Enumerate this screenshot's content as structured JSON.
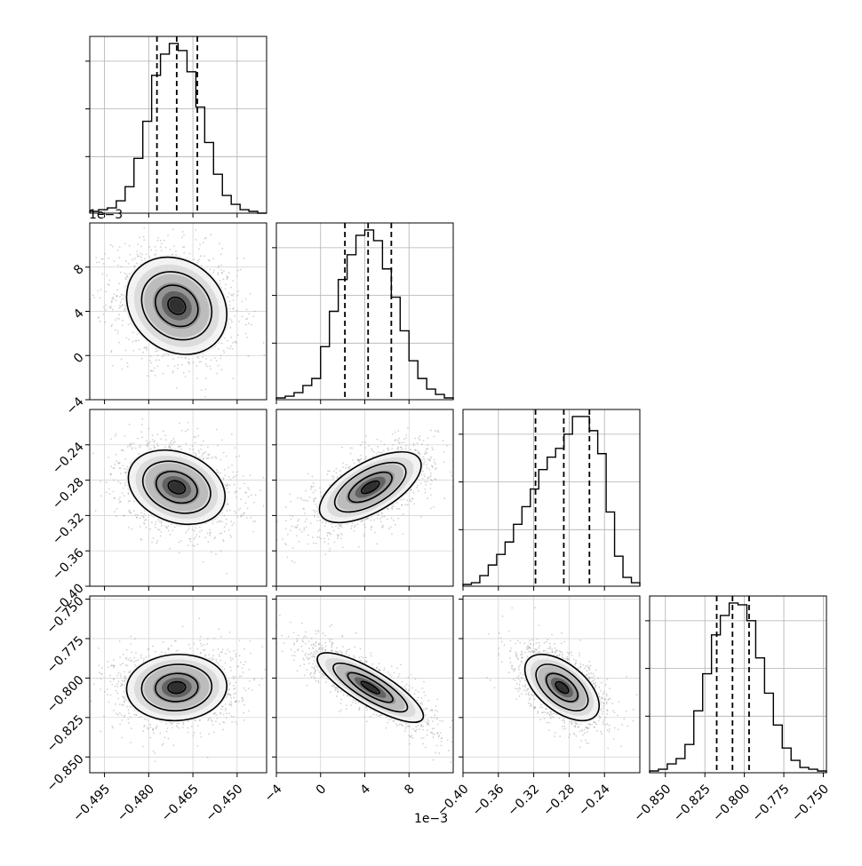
{
  "chart_data": {
    "type": "corner",
    "parameters": [
      {
        "range": [
          -0.5,
          -0.44
        ],
        "ticks": [
          -0.495,
          -0.48,
          -0.465,
          -0.45
        ],
        "tick_labels": [
          "−0.495",
          "−0.480",
          "−0.465",
          "−0.450"
        ],
        "quantiles": [
          -0.4772,
          -0.4705,
          -0.4635
        ]
      },
      {
        "range": [
          -0.004,
          0.012
        ],
        "ticks": [
          -0.004,
          0,
          0.004,
          0.008
        ],
        "tick_labels": [
          "−4",
          "0",
          "4",
          "8"
        ],
        "offset_text": "1e−3",
        "quantiles": [
          0.0022,
          0.0043,
          0.0064
        ]
      },
      {
        "range": [
          -0.4,
          -0.2
        ],
        "ticks": [
          -0.4,
          -0.36,
          -0.32,
          -0.28,
          -0.24
        ],
        "tick_labels": [
          "−0.40",
          "−0.36",
          "−0.32",
          "−0.28",
          "−0.24"
        ],
        "quantiles": [
          -0.318,
          -0.286,
          -0.257
        ]
      },
      {
        "range": [
          -0.86,
          -0.748
        ],
        "ticks": [
          -0.85,
          -0.825,
          -0.8,
          -0.775,
          -0.75
        ],
        "tick_labels": [
          "−0.850",
          "−0.825",
          "−0.800",
          "−0.775",
          "−0.750"
        ],
        "quantiles": [
          -0.8175,
          -0.8075,
          -0.797
        ]
      }
    ],
    "histograms": [
      [
        0.01,
        0.02,
        0.03,
        0.07,
        0.15,
        0.31,
        0.52,
        0.78,
        0.9,
        0.96,
        0.92,
        0.8,
        0.6,
        0.4,
        0.22,
        0.1,
        0.05,
        0.02,
        0.01,
        0.0
      ],
      [
        0.01,
        0.02,
        0.04,
        0.08,
        0.12,
        0.3,
        0.5,
        0.68,
        0.82,
        0.93,
        0.96,
        0.9,
        0.74,
        0.58,
        0.39,
        0.22,
        0.12,
        0.06,
        0.03,
        0.01
      ],
      [
        0.01,
        0.02,
        0.06,
        0.12,
        0.18,
        0.25,
        0.35,
        0.45,
        0.55,
        0.66,
        0.73,
        0.78,
        0.86,
        0.96,
        0.96,
        0.88,
        0.75,
        0.42,
        0.17,
        0.05,
        0.02
      ],
      [
        0.01,
        0.02,
        0.05,
        0.08,
        0.16,
        0.35,
        0.56,
        0.78,
        0.89,
        0.96,
        0.95,
        0.86,
        0.65,
        0.45,
        0.27,
        0.14,
        0.07,
        0.03,
        0.02,
        0.01
      ]
    ],
    "pairs": [
      {
        "row": 1,
        "col": 0,
        "mean": [
          -0.4705,
          0.0045
        ],
        "std": [
          0.0085,
          0.0022
        ],
        "corr": -0.18
      },
      {
        "row": 2,
        "col": 0,
        "mean": [
          -0.4705,
          -0.288
        ],
        "std": [
          0.0082,
          0.021
        ],
        "corr": -0.25
      },
      {
        "row": 2,
        "col": 1,
        "mean": [
          0.0045,
          -0.288
        ],
        "std": [
          0.0023,
          0.02
        ],
        "corr": 0.62
      },
      {
        "row": 3,
        "col": 0,
        "mean": [
          -0.4705,
          -0.806
        ],
        "std": [
          0.0085,
          0.0105
        ],
        "corr": 0.05
      },
      {
        "row": 3,
        "col": 1,
        "mean": [
          0.0045,
          -0.806
        ],
        "std": [
          0.0024,
          0.011
        ],
        "corr": -0.82
      },
      {
        "row": 3,
        "col": 2,
        "mean": [
          -0.288,
          -0.806
        ],
        "std": [
          0.021,
          0.0105
        ],
        "corr": -0.55
      }
    ],
    "grid": true
  }
}
